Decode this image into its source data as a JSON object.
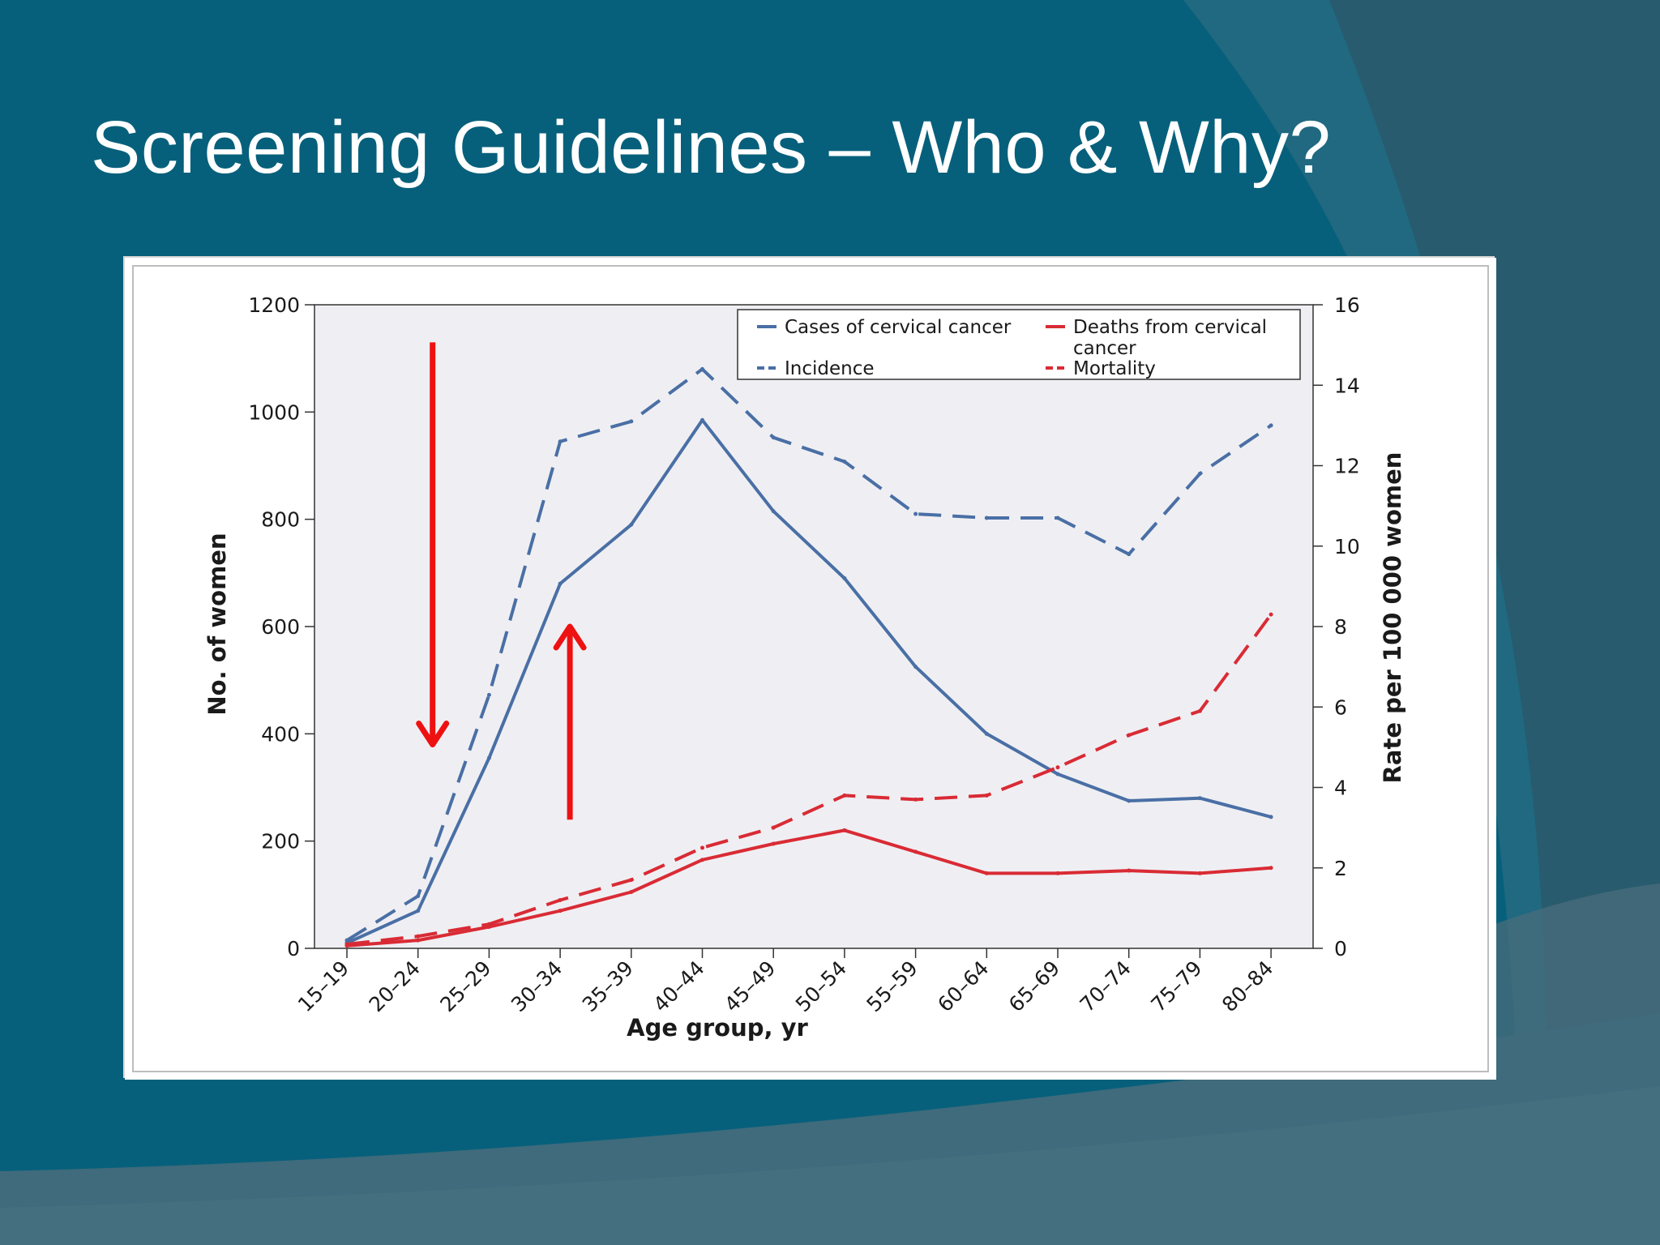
{
  "slide": {
    "title": "Screening Guidelines – Who & Why?"
  },
  "colors": {
    "background": "#07607b",
    "plot_bg": "#efeff3",
    "blue": "#4a6fa5",
    "red": "#d92b35",
    "arrow": "#ee1111"
  },
  "annotations": [
    {
      "type": "arrow",
      "direction": "down",
      "color": "#ee1111",
      "x_category": "20–24",
      "from_y_left": 1130,
      "to_y_left": 380
    },
    {
      "type": "arrow",
      "direction": "up",
      "color": "#ee1111",
      "x_category": "30–34",
      "from_y_left": 240,
      "to_y_left": 600
    }
  ],
  "chart_data": {
    "type": "line",
    "title": "",
    "xlabel": "Age group, yr",
    "ylabel": "No. of women",
    "y2label": "Rate per 100 000 women",
    "ylim": [
      0,
      1200
    ],
    "y2lim": [
      0,
      16
    ],
    "yticks": [
      "0",
      "200",
      "400",
      "600",
      "800",
      "1000",
      "1200"
    ],
    "y2ticks": [
      "0",
      "2",
      "4",
      "6",
      "8",
      "10",
      "12",
      "14",
      "16"
    ],
    "categories": [
      "15–19",
      "20–24",
      "25–29",
      "30–34",
      "35–39",
      "40–44",
      "45–49",
      "50–54",
      "55–59",
      "60–64",
      "65–69",
      "70–74",
      "75–79",
      "80–84"
    ],
    "legend": {
      "position": "top-right",
      "entries": [
        "Cases of cervical cancer",
        "Deaths from cervical",
        "cancer",
        "Incidence",
        "Mortality"
      ]
    },
    "series": [
      {
        "name": "Cases of cervical cancer",
        "axis": "left",
        "style": "solid",
        "color": "#4a6fa5",
        "values": [
          10,
          70,
          355,
          680,
          790,
          985,
          815,
          690,
          525,
          400,
          325,
          275,
          280,
          245
        ]
      },
      {
        "name": "Deaths from cervical cancer",
        "axis": "left",
        "style": "solid",
        "color": "#d92b35",
        "values": [
          5,
          15,
          40,
          70,
          105,
          165,
          195,
          220,
          180,
          140,
          140,
          145,
          140,
          150
        ]
      },
      {
        "name": "Incidence",
        "axis": "right",
        "style": "dashed",
        "color": "#4a6fa5",
        "values": [
          0.2,
          1.3,
          6.3,
          12.6,
          13.1,
          14.4,
          12.7,
          12.1,
          10.8,
          10.7,
          10.7,
          9.8,
          11.8,
          13.0
        ]
      },
      {
        "name": "Mortality",
        "axis": "right",
        "style": "dashed",
        "color": "#d92b35",
        "values": [
          0.1,
          0.3,
          0.6,
          1.2,
          1.7,
          2.5,
          3.0,
          3.8,
          3.7,
          3.8,
          4.5,
          5.3,
          5.9,
          8.3
        ]
      }
    ]
  }
}
